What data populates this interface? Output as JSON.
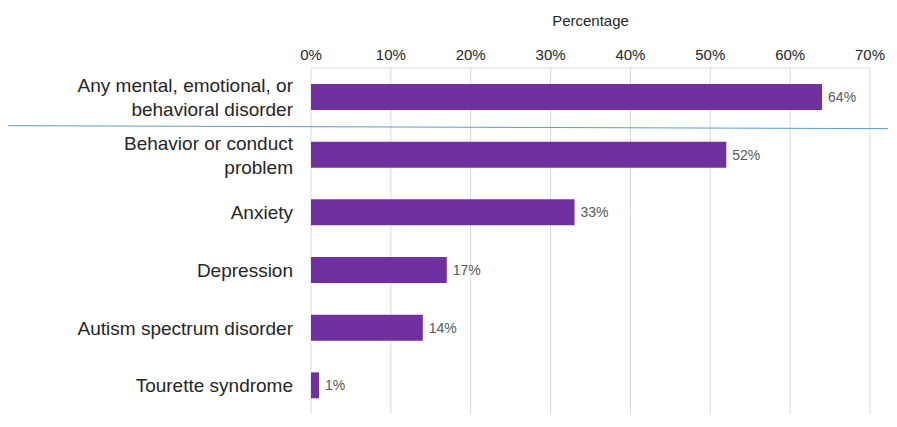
{
  "chart_data": {
    "type": "bar",
    "orientation": "horizontal",
    "x_label": "Percentage",
    "categories": [
      "Any mental, emotional, or behavioral disorder",
      "Behavior or conduct problem",
      "Anxiety",
      "Depression",
      "Autism spectrum disorder",
      "Tourette syndrome"
    ],
    "values": [
      64,
      52,
      33,
      17,
      14,
      1
    ],
    "value_labels": [
      "64%",
      "52%",
      "33%",
      "17%",
      "14%",
      "1%"
    ],
    "color": "#7030a0",
    "xlim": [
      0,
      70
    ],
    "xticks": [
      {
        "value": 0,
        "label": "0%"
      },
      {
        "value": 10,
        "label": "10%"
      },
      {
        "value": 20,
        "label": "20%"
      },
      {
        "value": 30,
        "label": "30%"
      },
      {
        "value": 40,
        "label": "40%"
      },
      {
        "value": 50,
        "label": "50%"
      },
      {
        "value": 60,
        "label": "60%"
      },
      {
        "value": 70,
        "label": "70%"
      }
    ],
    "grid": true,
    "data_labels": true
  }
}
